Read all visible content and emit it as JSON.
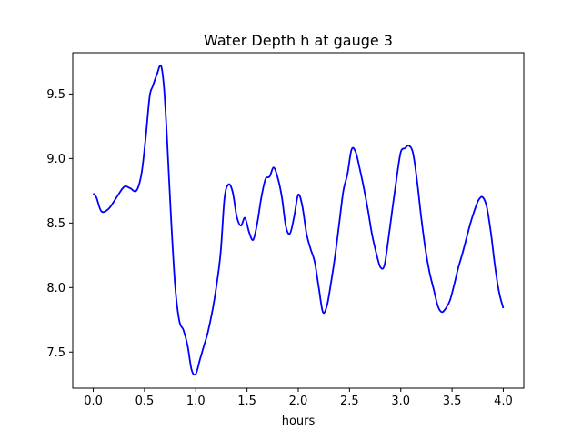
{
  "chart_data": {
    "type": "line",
    "title": "Water Depth h at gauge 3",
    "xlabel": "hours",
    "ylabel": "",
    "xlim": [
      -0.2,
      4.2
    ],
    "ylim": [
      7.22,
      9.82
    ],
    "x_ticks": [
      0.0,
      0.5,
      1.0,
      1.5,
      2.0,
      2.5,
      3.0,
      3.5,
      4.0
    ],
    "x_tick_labels": [
      "0.0",
      "0.5",
      "1.0",
      "1.5",
      "2.0",
      "2.5",
      "3.0",
      "3.5",
      "4.0"
    ],
    "y_ticks": [
      7.5,
      8.0,
      8.5,
      9.0,
      9.5
    ],
    "y_tick_labels": [
      "7.5",
      "8.0",
      "8.5",
      "9.0",
      "9.5"
    ],
    "grid": false,
    "legend": "none",
    "series": [
      {
        "color": "#0000ff",
        "x": [
          0.0,
          0.03,
          0.08,
          0.15,
          0.22,
          0.3,
          0.36,
          0.42,
          0.47,
          0.51,
          0.55,
          0.58,
          0.62,
          0.66,
          0.69,
          0.72,
          0.76,
          0.8,
          0.84,
          0.88,
          0.92,
          0.96,
          1.0,
          1.04,
          1.08,
          1.12,
          1.18,
          1.24,
          1.28,
          1.32,
          1.36,
          1.4,
          1.44,
          1.48,
          1.52,
          1.56,
          1.6,
          1.64,
          1.68,
          1.72,
          1.76,
          1.8,
          1.84,
          1.88,
          1.92,
          1.96,
          2.0,
          2.04,
          2.08,
          2.12,
          2.16,
          2.2,
          2.24,
          2.28,
          2.32,
          2.36,
          2.4,
          2.44,
          2.48,
          2.52,
          2.56,
          2.6,
          2.64,
          2.68,
          2.72,
          2.76,
          2.8,
          2.84,
          2.88,
          2.92,
          2.96,
          3.0,
          3.04,
          3.08,
          3.12,
          3.16,
          3.2,
          3.24,
          3.28,
          3.32,
          3.36,
          3.4,
          3.44,
          3.48,
          3.52,
          3.56,
          3.6,
          3.64,
          3.68,
          3.72,
          3.76,
          3.8,
          3.84,
          3.88,
          3.92,
          3.96,
          4.0
        ],
        "values": [
          8.73,
          8.7,
          8.59,
          8.61,
          8.69,
          8.78,
          8.77,
          8.75,
          8.88,
          9.15,
          9.48,
          9.56,
          9.65,
          9.72,
          9.55,
          9.15,
          8.52,
          8.0,
          7.74,
          7.67,
          7.55,
          7.36,
          7.33,
          7.44,
          7.55,
          7.66,
          7.9,
          8.25,
          8.69,
          8.8,
          8.74,
          8.55,
          8.48,
          8.54,
          8.43,
          8.37,
          8.5,
          8.7,
          8.84,
          8.86,
          8.93,
          8.85,
          8.7,
          8.47,
          8.42,
          8.55,
          8.72,
          8.63,
          8.42,
          8.3,
          8.2,
          8.0,
          7.81,
          7.86,
          8.04,
          8.25,
          8.5,
          8.75,
          8.88,
          9.07,
          9.05,
          8.92,
          8.77,
          8.6,
          8.41,
          8.27,
          8.16,
          8.17,
          8.38,
          8.62,
          8.85,
          9.05,
          9.08,
          9.1,
          9.04,
          8.82,
          8.54,
          8.3,
          8.12,
          7.99,
          7.86,
          7.81,
          7.84,
          7.9,
          8.02,
          8.15,
          8.26,
          8.38,
          8.5,
          8.6,
          8.68,
          8.7,
          8.62,
          8.42,
          8.16,
          7.96,
          7.84
        ]
      }
    ]
  }
}
